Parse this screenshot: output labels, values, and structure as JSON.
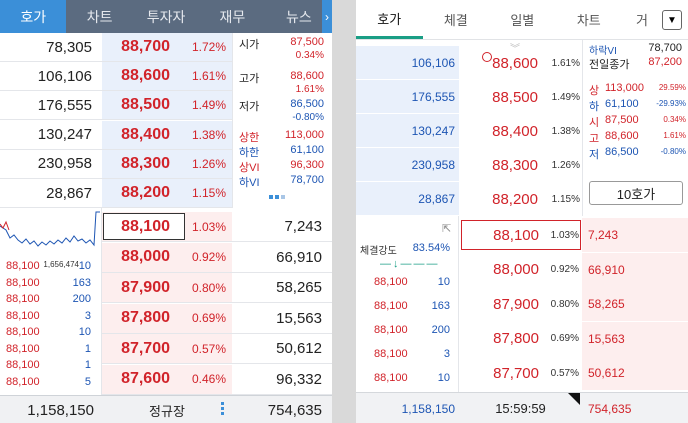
{
  "left": {
    "tabs": [
      "호가",
      "차트",
      "투자자",
      "재무",
      "뉴스"
    ],
    "more_icon": "chevron-right-icon",
    "ask": [
      {
        "vol": "78,305",
        "price": "88,700",
        "pct": "1.72%"
      },
      {
        "vol": "106,106",
        "price": "88,600",
        "pct": "1.61%"
      },
      {
        "vol": "176,555",
        "price": "88,500",
        "pct": "1.49%"
      },
      {
        "vol": "130,247",
        "price": "88,400",
        "pct": "1.38%"
      },
      {
        "vol": "230,958",
        "price": "88,300",
        "pct": "1.26%"
      },
      {
        "vol": "28,867",
        "price": "88,200",
        "pct": "1.15%"
      }
    ],
    "bid": [
      {
        "price": "88,100",
        "pct": "1.03%",
        "vol": "7,243"
      },
      {
        "price": "88,000",
        "pct": "0.92%",
        "vol": "66,910"
      },
      {
        "price": "87,900",
        "pct": "0.80%",
        "vol": "58,265"
      },
      {
        "price": "87,800",
        "pct": "0.69%",
        "vol": "15,563"
      },
      {
        "price": "87,700",
        "pct": "0.57%",
        "vol": "50,612"
      },
      {
        "price": "87,600",
        "pct": "0.46%",
        "vol": "96,332"
      }
    ],
    "info": [
      {
        "label": "시가",
        "value": "87,500",
        "sub": "0.34%"
      },
      {
        "label": "고가",
        "value": "88,600",
        "sub": "1.61%"
      },
      {
        "label": "저가",
        "value": "86,500",
        "sub": "-0.80%"
      }
    ],
    "info2": [
      {
        "label": "상한",
        "value": "113,000"
      },
      {
        "label": "하한",
        "value": "61,100"
      },
      {
        "label": "상VI",
        "value": "96,300"
      },
      {
        "label": "하VI",
        "value": "78,700"
      }
    ],
    "chart_volume": "1,656,474",
    "trades": [
      {
        "price": "88,100",
        "qty": "10"
      },
      {
        "price": "88,100",
        "qty": "163"
      },
      {
        "price": "88,100",
        "qty": "200"
      },
      {
        "price": "88,100",
        "qty": "3"
      },
      {
        "price": "88,100",
        "qty": "10"
      },
      {
        "price": "88,100",
        "qty": "1"
      },
      {
        "price": "88,100",
        "qty": "1"
      },
      {
        "price": "88,100",
        "qty": "5"
      }
    ],
    "footer": {
      "ask_total": "1,158,150",
      "status": "정규장",
      "bid_total": "754,635"
    }
  },
  "right": {
    "tabs": [
      "호가",
      "체결",
      "일별",
      "차트",
      "거"
    ],
    "dropdown_icon": "chevron-down-icon",
    "ask": [
      {
        "vol": "106,106",
        "price": "88,600",
        "pct": "1.61%"
      },
      {
        "vol": "176,555",
        "price": "88,500",
        "pct": "1.49%"
      },
      {
        "vol": "130,247",
        "price": "88,400",
        "pct": "1.38%"
      },
      {
        "vol": "230,958",
        "price": "88,300",
        "pct": "1.26%"
      },
      {
        "vol": "28,867",
        "price": "88,200",
        "pct": "1.15%"
      }
    ],
    "bid": [
      {
        "price": "88,100",
        "pct": "1.03%",
        "vol": "7,243"
      },
      {
        "price": "88,000",
        "pct": "0.92%",
        "vol": "66,910"
      },
      {
        "price": "87,900",
        "pct": "0.80%",
        "vol": "58,265"
      },
      {
        "price": "87,800",
        "pct": "0.69%",
        "vol": "15,563"
      },
      {
        "price": "87,700",
        "pct": "0.57%",
        "vol": "50,612"
      }
    ],
    "top_info": [
      {
        "label": "하락VI",
        "value": "78,700"
      },
      {
        "label": "전일종가",
        "value": "87,200"
      }
    ],
    "limits": [
      {
        "label": "상",
        "value": "113,000",
        "pct": "29.59%"
      },
      {
        "label": "하",
        "value": "61,100",
        "pct": "-29.93%"
      },
      {
        "label": "시",
        "value": "87,500",
        "pct": "0.34%"
      },
      {
        "label": "고",
        "value": "88,600",
        "pct": "1.61%"
      },
      {
        "label": "저",
        "value": "86,500",
        "pct": "-0.80%"
      }
    ],
    "depth_button": "10호가",
    "strength_label": "체결강도",
    "strength_value": "83.54%",
    "trades": [
      {
        "price": "88,100",
        "qty": "10"
      },
      {
        "price": "88,100",
        "qty": "163"
      },
      {
        "price": "88,100",
        "qty": "200"
      },
      {
        "price": "88,100",
        "qty": "3"
      },
      {
        "price": "88,100",
        "qty": "10"
      }
    ],
    "footer": {
      "ask_total": "1,158,150",
      "time": "15:59:59",
      "bid_total": "754,635"
    }
  },
  "colors": {
    "up": "#d1232a",
    "down": "#1d55b3",
    "ask_bg": "#e9f0fb",
    "bid_bg": "#fdeeee"
  }
}
